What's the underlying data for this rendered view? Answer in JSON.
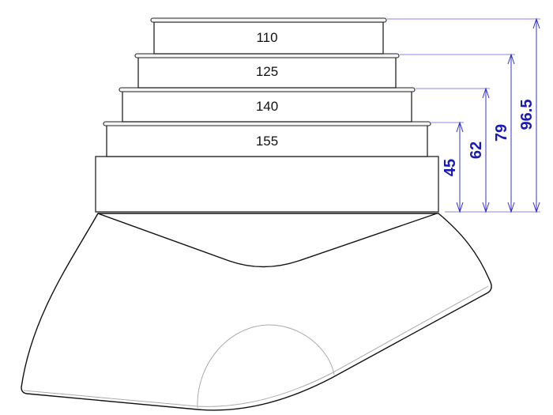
{
  "tiers": [
    {
      "label": "110"
    },
    {
      "label": "125"
    },
    {
      "label": "140"
    },
    {
      "label": "155"
    }
  ],
  "dimensions": [
    {
      "label": "45"
    },
    {
      "label": "62"
    },
    {
      "label": "79"
    },
    {
      "label": "96.5"
    }
  ],
  "colors": {
    "dimension": "#1a1ab4",
    "outline": "#222222"
  }
}
